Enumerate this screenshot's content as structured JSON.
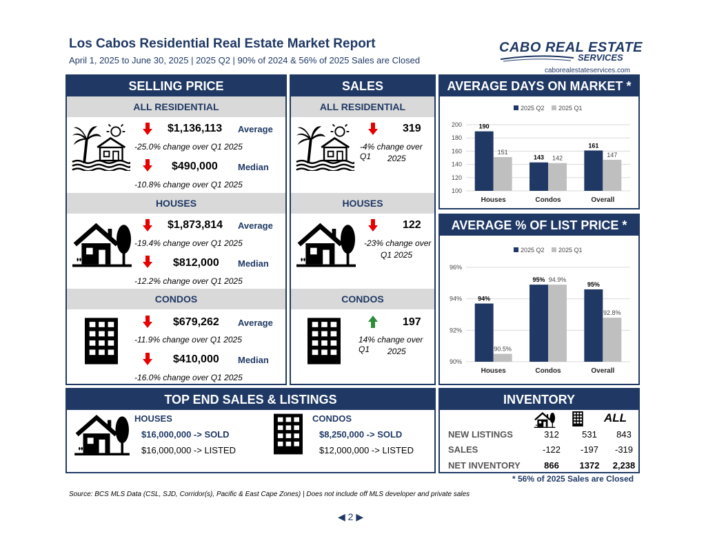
{
  "header": {
    "title": "Los Cabos Residential Real Estate Market Report",
    "subtitle": "April 1, 2025 to June 30, 2025 | 2025 Q2 | 90% of 2024 & 56% of 2025 Sales are Closed",
    "logo_main": "CABO REAL ESTATE",
    "logo_sub": "SERVICES",
    "logo_url": "caborealestateservices.com"
  },
  "colors": {
    "navy": "#1f3864",
    "grey": "#bfbfbf",
    "down": "#e60000",
    "up": "#2e7d32"
  },
  "selling_price": {
    "title": "SELLING PRICE",
    "all": {
      "label": "ALL RESIDENTIAL",
      "avg": "$1,136,113",
      "avg_label": "Average",
      "avg_chg": "-25.0% change over Q1 2025",
      "med": "$490,000",
      "med_label": "Median",
      "med_chg": "-10.8% change over Q1 2025"
    },
    "houses": {
      "label": "HOUSES",
      "avg": "$1,873,814",
      "avg_label": "Average",
      "avg_chg": "-19.4% change over Q1 2025",
      "med": "$812,000",
      "med_label": "Median",
      "med_chg": "-12.2% change over Q1 2025"
    },
    "condos": {
      "label": "CONDOS",
      "avg": "$679,262",
      "avg_label": "Average",
      "avg_chg": "-11.9% change over Q1 2025",
      "med": "$410,000",
      "med_label": "Median",
      "med_chg": "-16.0% change over Q1 2025"
    }
  },
  "sales": {
    "title": "SALES",
    "all": {
      "label": "ALL RESIDENTIAL",
      "value": "319",
      "chg1": "-4% change over Q1",
      "chg2": "2025",
      "direction": "down"
    },
    "houses": {
      "label": "HOUSES",
      "value": "122",
      "chg1": "-23% change over",
      "chg2": "Q1 2025",
      "direction": "down"
    },
    "condos": {
      "label": "CONDOS",
      "value": "197",
      "chg1": "14% change over Q1",
      "chg2": "2025",
      "direction": "up"
    }
  },
  "days_panel": {
    "title": "AVERAGE DAYS ON MARKET *"
  },
  "list_panel": {
    "title": "AVERAGE % OF LIST PRICE *"
  },
  "chart_data": [
    {
      "type": "bar",
      "categories": [
        "Houses",
        "Condos",
        "Overall"
      ],
      "series": [
        {
          "name": "2025 Q2",
          "values": [
            190,
            143,
            161
          ],
          "labels": [
            "190",
            "143",
            "161"
          ]
        },
        {
          "name": "2025 Q1",
          "values": [
            151,
            142,
            147
          ],
          "labels": [
            "151",
            "142",
            "147"
          ]
        }
      ],
      "ylim": [
        100,
        200
      ],
      "yticks": [
        "200",
        "180",
        "160",
        "140",
        "120",
        "100"
      ],
      "grid": true,
      "legend": "top"
    },
    {
      "type": "bar",
      "categories": [
        "Houses",
        "Condos",
        "Overall"
      ],
      "series": [
        {
          "name": "2025 Q2",
          "values": [
            93.7,
            94.9,
            94.6
          ],
          "labels": [
            "94%",
            "95%",
            "95%"
          ]
        },
        {
          "name": "2025 Q1",
          "values": [
            90.5,
            94.9,
            92.8
          ],
          "labels": [
            "90.5%",
            "94.9%",
            "92.8%"
          ]
        }
      ],
      "ylim": [
        90,
        96
      ],
      "yticks": [
        "96%",
        "94%",
        "92%",
        "90%"
      ],
      "grid": true,
      "legend": "top"
    }
  ],
  "top_end": {
    "title": "TOP END SALES & LISTINGS",
    "houses_label": "HOUSES",
    "houses_sold": "$16,000,000 -> SOLD",
    "houses_listed": "$16,000,000 -> LISTED",
    "condos_label": "CONDOS",
    "condos_sold": "$8,250,000 -> SOLD",
    "condos_listed": "$12,000,000 -> LISTED"
  },
  "inventory": {
    "title": "INVENTORY",
    "all_label": "ALL",
    "rows": [
      {
        "label": "NEW LISTINGS",
        "houses": "312",
        "condos": "531",
        "all": "843"
      },
      {
        "label": "SALES",
        "houses": "-122",
        "condos": "-197",
        "all": "-319"
      },
      {
        "label": "NET INVENTORY",
        "houses": "866",
        "condos": "1372",
        "all": "2,238"
      }
    ],
    "note": "* 56% of 2025 Sales are Closed"
  },
  "footer": {
    "source": "Source:  BCS MLS Data (CSL, SJD, Corridor(s), Pacific & East Cape Zones) | Does not include off MLS developer and private sales",
    "page": "2"
  }
}
